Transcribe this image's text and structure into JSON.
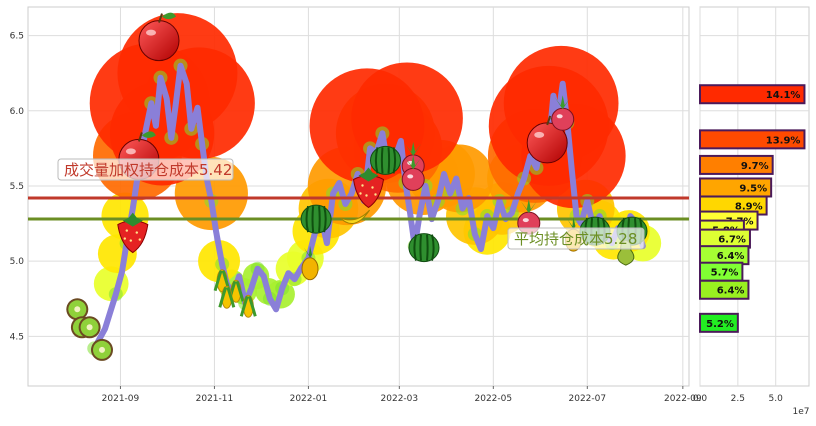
{
  "chart_data": [
    {
      "type": "line",
      "x_ticks": [
        "2021-09",
        "2021-11",
        "2022-01",
        "2022-03",
        "2022-05",
        "2022-07",
        "2022-09"
      ],
      "y_ticks": [
        4.5,
        5.0,
        5.5,
        6.0,
        6.5
      ],
      "xlim": [
        "2021-07-03",
        "2022-09-05"
      ],
      "ylim": [
        4.17,
        6.69
      ],
      "grid": true,
      "series": [
        {
          "values": [
            [
              "2021-08-15",
              4.42
            ],
            [
              "2021-08-22",
              4.55
            ],
            [
              "2021-08-29",
              4.78
            ],
            [
              "2021-09-02",
              4.93
            ],
            [
              "2021-09-05",
              5.12
            ],
            [
              "2021-09-09",
              5.35
            ],
            [
              "2021-09-13",
              5.62
            ],
            [
              "2021-09-17",
              5.85
            ],
            [
              "2021-09-21",
              6.05
            ],
            [
              "2021-09-24",
              5.9
            ],
            [
              "2021-09-27",
              6.22
            ],
            [
              "2021-10-01",
              6.08
            ],
            [
              "2021-10-04",
              5.82
            ],
            [
              "2021-10-07",
              6.05
            ],
            [
              "2021-10-10",
              6.3
            ],
            [
              "2021-10-14",
              6.18
            ],
            [
              "2021-10-17",
              5.88
            ],
            [
              "2021-10-21",
              6.02
            ],
            [
              "2021-10-24",
              5.78
            ],
            [
              "2021-10-27",
              5.55
            ],
            [
              "2021-10-30",
              5.4
            ],
            [
              "2021-11-02",
              5.2
            ],
            [
              "2021-11-06",
              4.98
            ],
            [
              "2021-11-09",
              4.85
            ],
            [
              "2021-11-13",
              4.78
            ],
            [
              "2021-11-17",
              4.9
            ],
            [
              "2021-11-21",
              4.72
            ],
            [
              "2021-11-25",
              4.82
            ],
            [
              "2021-11-29",
              4.95
            ],
            [
              "2021-12-03",
              4.9
            ],
            [
              "2021-12-07",
              4.75
            ],
            [
              "2021-12-11",
              4.68
            ],
            [
              "2021-12-15",
              4.82
            ],
            [
              "2021-12-19",
              4.92
            ],
            [
              "2021-12-23",
              4.88
            ],
            [
              "2021-12-27",
              4.95
            ],
            [
              "2022-01-01",
              5.02
            ],
            [
              "2022-01-05",
              5.18
            ],
            [
              "2022-01-09",
              5.3
            ],
            [
              "2022-01-13",
              5.12
            ],
            [
              "2022-01-17",
              5.45
            ],
            [
              "2022-01-21",
              5.52
            ],
            [
              "2022-01-25",
              5.38
            ],
            [
              "2022-01-29",
              5.45
            ],
            [
              "2022-02-02",
              5.58
            ],
            [
              "2022-02-06",
              5.4
            ],
            [
              "2022-02-10",
              5.75
            ],
            [
              "2022-02-14",
              5.72
            ],
            [
              "2022-02-18",
              5.85
            ],
            [
              "2022-02-22",
              5.6
            ],
            [
              "2022-02-26",
              5.68
            ],
            [
              "2022-03-02",
              5.8
            ],
            [
              "2022-03-05",
              5.52
            ],
            [
              "2022-03-08",
              5.32
            ],
            [
              "2022-03-11",
              5.1
            ],
            [
              "2022-03-14",
              5.3
            ],
            [
              "2022-03-18",
              5.5
            ],
            [
              "2022-03-22",
              5.28
            ],
            [
              "2022-03-26",
              5.4
            ],
            [
              "2022-03-30",
              5.58
            ],
            [
              "2022-04-03",
              5.45
            ],
            [
              "2022-04-07",
              5.55
            ],
            [
              "2022-04-11",
              5.35
            ],
            [
              "2022-04-15",
              5.42
            ],
            [
              "2022-04-19",
              5.18
            ],
            [
              "2022-04-23",
              5.08
            ],
            [
              "2022-04-27",
              5.3
            ],
            [
              "2022-05-01",
              5.22
            ],
            [
              "2022-05-05",
              5.4
            ],
            [
              "2022-05-09",
              5.28
            ],
            [
              "2022-05-13",
              5.32
            ],
            [
              "2022-05-17",
              5.45
            ],
            [
              "2022-05-21",
              5.55
            ],
            [
              "2022-05-25",
              5.7
            ],
            [
              "2022-05-29",
              5.62
            ],
            [
              "2022-06-02",
              5.85
            ],
            [
              "2022-06-06",
              5.78
            ],
            [
              "2022-06-09",
              6.1
            ],
            [
              "2022-06-12",
              5.95
            ],
            [
              "2022-06-15",
              6.18
            ],
            [
              "2022-06-18",
              5.92
            ],
            [
              "2022-06-21",
              5.6
            ],
            [
              "2022-06-24",
              5.3
            ],
            [
              "2022-06-27",
              5.25
            ],
            [
              "2022-07-01",
              5.4
            ],
            [
              "2022-07-05",
              5.22
            ],
            [
              "2022-07-09",
              5.3
            ],
            [
              "2022-07-13",
              5.18
            ],
            [
              "2022-07-17",
              5.12
            ],
            [
              "2022-07-21",
              5.22
            ],
            [
              "2022-07-25",
              5.15
            ],
            [
              "2022-07-29",
              5.3
            ],
            [
              "2022-08-02",
              5.25
            ],
            [
              "2022-08-06",
              5.1
            ]
          ]
        }
      ],
      "reference_lines": [
        {
          "label": "成交量加权持仓成本5.42",
          "value": 5.42,
          "color": "#c0392b"
        },
        {
          "label": "平均持仓成本5.28",
          "value": 5.28,
          "color": "#6b8e23"
        }
      ],
      "volume_bubbles": [
        [
          "2021-09-20",
          6.05,
          1.0
        ],
        [
          "2021-10-08",
          6.25,
          1.0
        ],
        [
          "2021-10-22",
          6.05,
          0.92
        ],
        [
          "2021-09-28",
          5.85,
          0.85
        ],
        [
          "2021-09-12",
          5.7,
          0.7
        ],
        [
          "2021-10-30",
          5.45,
          0.55
        ],
        [
          "2021-09-04",
          5.3,
          0.3
        ],
        [
          "2021-08-30",
          5.05,
          0.22
        ],
        [
          "2021-08-26",
          4.85,
          0.18
        ],
        [
          "2021-11-04",
          5.0,
          0.25
        ],
        [
          "2021-11-12",
          4.85,
          0.12
        ],
        [
          "2021-11-20",
          4.8,
          0.1
        ],
        [
          "2021-11-28",
          4.9,
          0.1
        ],
        [
          "2021-12-06",
          4.8,
          0.1
        ],
        [
          "2021-12-14",
          4.78,
          0.12
        ],
        [
          "2021-12-22",
          4.95,
          0.18
        ],
        [
          "2021-12-30",
          5.02,
          0.2
        ],
        [
          "2022-01-06",
          5.2,
          0.3
        ],
        [
          "2022-01-14",
          5.35,
          0.42
        ],
        [
          "2022-02-08",
          5.9,
          0.95
        ],
        [
          "2022-02-20",
          5.85,
          0.8
        ],
        [
          "2022-03-06",
          5.95,
          0.92
        ],
        [
          "2022-02-28",
          5.75,
          0.7
        ],
        [
          "2022-01-26",
          5.5,
          0.6
        ],
        [
          "2022-03-16",
          5.55,
          0.55
        ],
        [
          "2022-03-28",
          5.58,
          0.5
        ],
        [
          "2022-04-09",
          5.55,
          0.5
        ],
        [
          "2022-04-19",
          5.3,
          0.4
        ],
        [
          "2022-04-27",
          5.2,
          0.3
        ],
        [
          "2022-05-07",
          5.35,
          0.35
        ],
        [
          "2022-05-19",
          5.55,
          0.5
        ],
        [
          "2022-06-06",
          5.9,
          1.0
        ],
        [
          "2022-06-14",
          6.05,
          0.95
        ],
        [
          "2022-06-22",
          5.7,
          0.85
        ],
        [
          "2022-05-28",
          5.7,
          0.75
        ],
        [
          "2022-06-30",
          5.35,
          0.4
        ],
        [
          "2022-07-08",
          5.25,
          0.3
        ],
        [
          "2022-07-18",
          5.15,
          0.25
        ],
        [
          "2022-07-28",
          5.2,
          0.25
        ],
        [
          "2022-08-06",
          5.12,
          0.2
        ]
      ]
    },
    {
      "type": "bar",
      "orientation": "horizontal",
      "x_ticks": [
        "0.0",
        "2.5",
        "5.0"
      ],
      "x_multiplier": "1e7",
      "xlim": [
        0,
        7.2
      ],
      "ylim": [
        4.17,
        6.69
      ],
      "bars": [
        {
          "price": 6.11,
          "value": 6.9,
          "label": "14.1%",
          "color": "#ff2a00"
        },
        {
          "price": 5.81,
          "value": 6.9,
          "label": "13.9%",
          "color": "#ff4a00"
        },
        {
          "price": 5.64,
          "value": 4.8,
          "label": "9.7%",
          "color": "#ff7f00"
        },
        {
          "price": 5.49,
          "value": 4.7,
          "label": "9.5%",
          "color": "#ffa500"
        },
        {
          "price": 5.37,
          "value": 4.4,
          "label": "8.9%",
          "color": "#ffd700"
        },
        {
          "price": 5.27,
          "value": 3.8,
          "label": "7.7%",
          "color": "#ffff33"
        },
        {
          "price": 5.21,
          "value": 2.9,
          "label": "5.8%",
          "color": "#eaff2a"
        },
        {
          "price": 5.15,
          "value": 3.3,
          "label": "6.7%",
          "color": "#ddff33"
        },
        {
          "price": 5.04,
          "value": 3.2,
          "label": "6.4%",
          "color": "#a6ff33"
        },
        {
          "price": 4.93,
          "value": 2.8,
          "label": "5.7%",
          "color": "#80ff33"
        },
        {
          "price": 4.81,
          "value": 3.2,
          "label": "6.4%",
          "color": "#99f020"
        },
        {
          "price": 4.59,
          "value": 2.5,
          "label": "5.2%",
          "color": "#22ee22"
        }
      ]
    }
  ],
  "icons": [
    {
      "name": "apple-icon",
      "date": "2021-09-26",
      "price": 6.48
    },
    {
      "name": "apple-icon",
      "date": "2021-09-13",
      "price": 5.69
    },
    {
      "name": "strawberry-icon",
      "date": "2021-09-09",
      "price": 5.19
    },
    {
      "name": "kiwi-icon",
      "date": "2021-08-04",
      "price": 4.68
    },
    {
      "name": "kiwi-icon",
      "date": "2021-08-07",
      "price": 4.56
    },
    {
      "name": "kiwi-icon",
      "date": "2021-08-12",
      "price": 4.56
    },
    {
      "name": "kiwi-icon",
      "date": "2021-08-20",
      "price": 4.41
    },
    {
      "name": "corn-icon",
      "date": "2021-11-06",
      "price": 4.87
    },
    {
      "name": "corn-icon",
      "date": "2021-11-15",
      "price": 4.8
    },
    {
      "name": "corn-icon",
      "date": "2021-11-23",
      "price": 4.7
    },
    {
      "name": "corn-icon",
      "date": "2021-11-09",
      "price": 4.76
    },
    {
      "name": "pineapple-icon",
      "date": "2022-01-02",
      "price": 4.97
    },
    {
      "name": "watermelon-icon",
      "date": "2022-01-06",
      "price": 5.28
    },
    {
      "name": "banana-icon",
      "date": "2022-01-31",
      "price": 5.3
    },
    {
      "name": "strawberry-icon",
      "date": "2022-02-09",
      "price": 5.49
    },
    {
      "name": "watermelon-icon",
      "date": "2022-02-20",
      "price": 5.67
    },
    {
      "name": "radish-icon",
      "date": "2022-03-10",
      "price": 5.66
    },
    {
      "name": "radish-icon",
      "date": "2022-03-10",
      "price": 5.57
    },
    {
      "name": "watermelon-icon",
      "date": "2022-03-17",
      "price": 5.09
    },
    {
      "name": "radish-icon",
      "date": "2022-05-24",
      "price": 5.28
    },
    {
      "name": "apple-icon",
      "date": "2022-06-05",
      "price": 5.8
    },
    {
      "name": "radish-icon",
      "date": "2022-06-15",
      "price": 5.97
    },
    {
      "name": "pineapple-icon",
      "date": "2022-06-22",
      "price": 5.16
    },
    {
      "name": "watermelon-icon",
      "date": "2022-07-06",
      "price": 5.2
    },
    {
      "name": "watermelon-icon",
      "date": "2022-07-30",
      "price": 5.2
    },
    {
      "name": "pear-icon",
      "date": "2022-07-26",
      "price": 5.06
    }
  ]
}
